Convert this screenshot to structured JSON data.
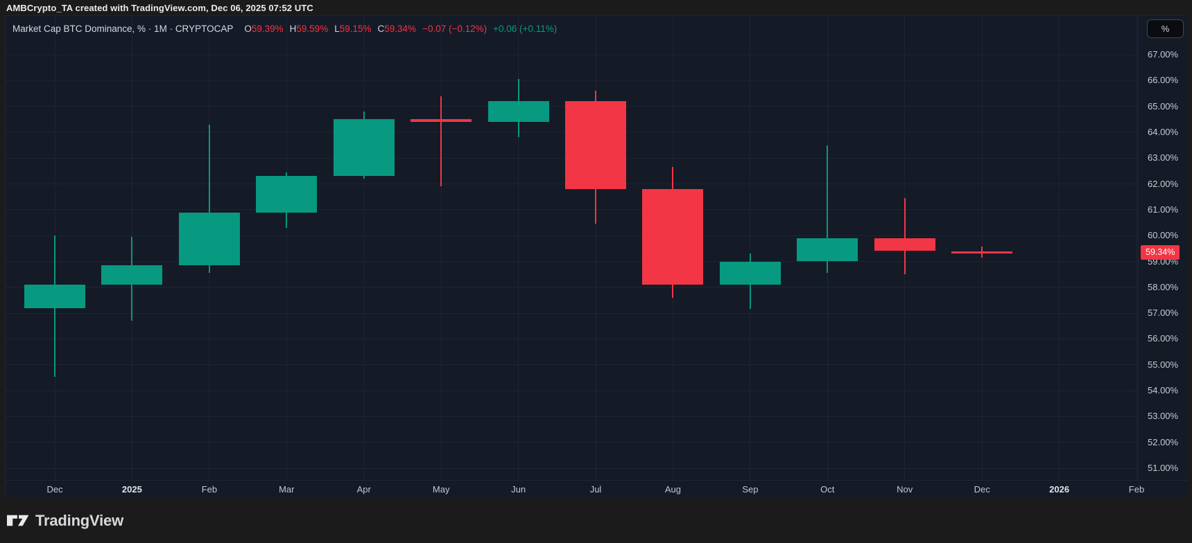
{
  "header": {
    "attribution": "AMBCrypto_TA created with TradingView.com, Dec 06, 2025 07:52 UTC"
  },
  "legend": {
    "title": "Market Cap BTC Dominance, % · 1M · CRYPTOCAP",
    "ohlc": [
      {
        "label": "O",
        "value": "59.39%"
      },
      {
        "label": "H",
        "value": "59.59%"
      },
      {
        "label": "L",
        "value": "59.15%"
      },
      {
        "label": "C",
        "value": "59.34%"
      }
    ],
    "change": "−0.07 (−0.12%)",
    "extended_change": "+0.06 (+0.11%)"
  },
  "price_scale": {
    "unit_button": "%",
    "labels": [
      "67.00%",
      "66.00%",
      "65.00%",
      "64.00%",
      "63.00%",
      "62.00%",
      "61.00%",
      "60.00%",
      "59.00%",
      "58.00%",
      "57.00%",
      "56.00%",
      "55.00%",
      "54.00%",
      "53.00%",
      "52.00%",
      "51.00%"
    ],
    "current_price": 59.34,
    "current_price_label": "59.34%"
  },
  "time_scale": {
    "labels": [
      {
        "text": "Dec",
        "year": false
      },
      {
        "text": "2025",
        "year": true
      },
      {
        "text": "Feb",
        "year": false
      },
      {
        "text": "Mar",
        "year": false
      },
      {
        "text": "Apr",
        "year": false
      },
      {
        "text": "May",
        "year": false
      },
      {
        "text": "Jun",
        "year": false
      },
      {
        "text": "Jul",
        "year": false
      },
      {
        "text": "Aug",
        "year": false
      },
      {
        "text": "Sep",
        "year": false
      },
      {
        "text": "Oct",
        "year": false
      },
      {
        "text": "Nov",
        "year": false
      },
      {
        "text": "Dec",
        "year": false
      },
      {
        "text": "2026",
        "year": true
      },
      {
        "text": "Feb",
        "year": false
      }
    ]
  },
  "footer": {
    "brand": "TradingView"
  },
  "colors": {
    "up": "#089981",
    "down": "#F23645",
    "background": "#151A27",
    "outer": "#1B1B1B",
    "grid": "#1F2433",
    "axis_text": "#C8CBD4",
    "price_tag_bg": "#F23645"
  },
  "chart_data": {
    "type": "candlestick",
    "title": "Market Cap BTC Dominance, %",
    "symbol": "CRYPTOCAP",
    "interval": "1M",
    "unit": "%",
    "ylim": [
      50.5,
      68.5
    ],
    "y_ticks": [
      67,
      66,
      65,
      64,
      63,
      62,
      61,
      60,
      59,
      58,
      57,
      56,
      55,
      54,
      53,
      52,
      51
    ],
    "grid": true,
    "last_close": 59.34,
    "series": [
      {
        "month": "Dec 2024",
        "open": 57.2,
        "high": 60.0,
        "low": 54.55,
        "close": 58.1
      },
      {
        "month": "Jan 2025",
        "open": 58.1,
        "high": 59.95,
        "low": 56.7,
        "close": 58.85
      },
      {
        "month": "Feb 2025",
        "open": 58.85,
        "high": 64.3,
        "low": 58.55,
        "close": 60.9
      },
      {
        "month": "Mar 2025",
        "open": 60.9,
        "high": 62.45,
        "low": 60.3,
        "close": 62.3
      },
      {
        "month": "Apr 2025",
        "open": 62.3,
        "high": 64.8,
        "low": 62.2,
        "close": 64.5
      },
      {
        "month": "May 2025",
        "open": 64.5,
        "high": 65.4,
        "low": 61.9,
        "close": 64.4
      },
      {
        "month": "Jun 2025",
        "open": 64.4,
        "high": 66.05,
        "low": 63.8,
        "close": 65.2
      },
      {
        "month": "Jul 2025",
        "open": 65.2,
        "high": 65.6,
        "low": 60.45,
        "close": 61.8
      },
      {
        "month": "Aug 2025",
        "open": 61.8,
        "high": 62.65,
        "low": 57.6,
        "close": 58.1
      },
      {
        "month": "Sep 2025",
        "open": 58.1,
        "high": 59.3,
        "low": 57.15,
        "close": 59.0
      },
      {
        "month": "Oct 2025",
        "open": 59.0,
        "high": 63.5,
        "low": 58.55,
        "close": 59.9
      },
      {
        "month": "Nov 2025",
        "open": 59.9,
        "high": 61.45,
        "low": 58.5,
        "close": 59.41
      },
      {
        "month": "Dec 2025",
        "open": 59.39,
        "high": 59.59,
        "low": 59.15,
        "close": 59.34
      }
    ]
  }
}
